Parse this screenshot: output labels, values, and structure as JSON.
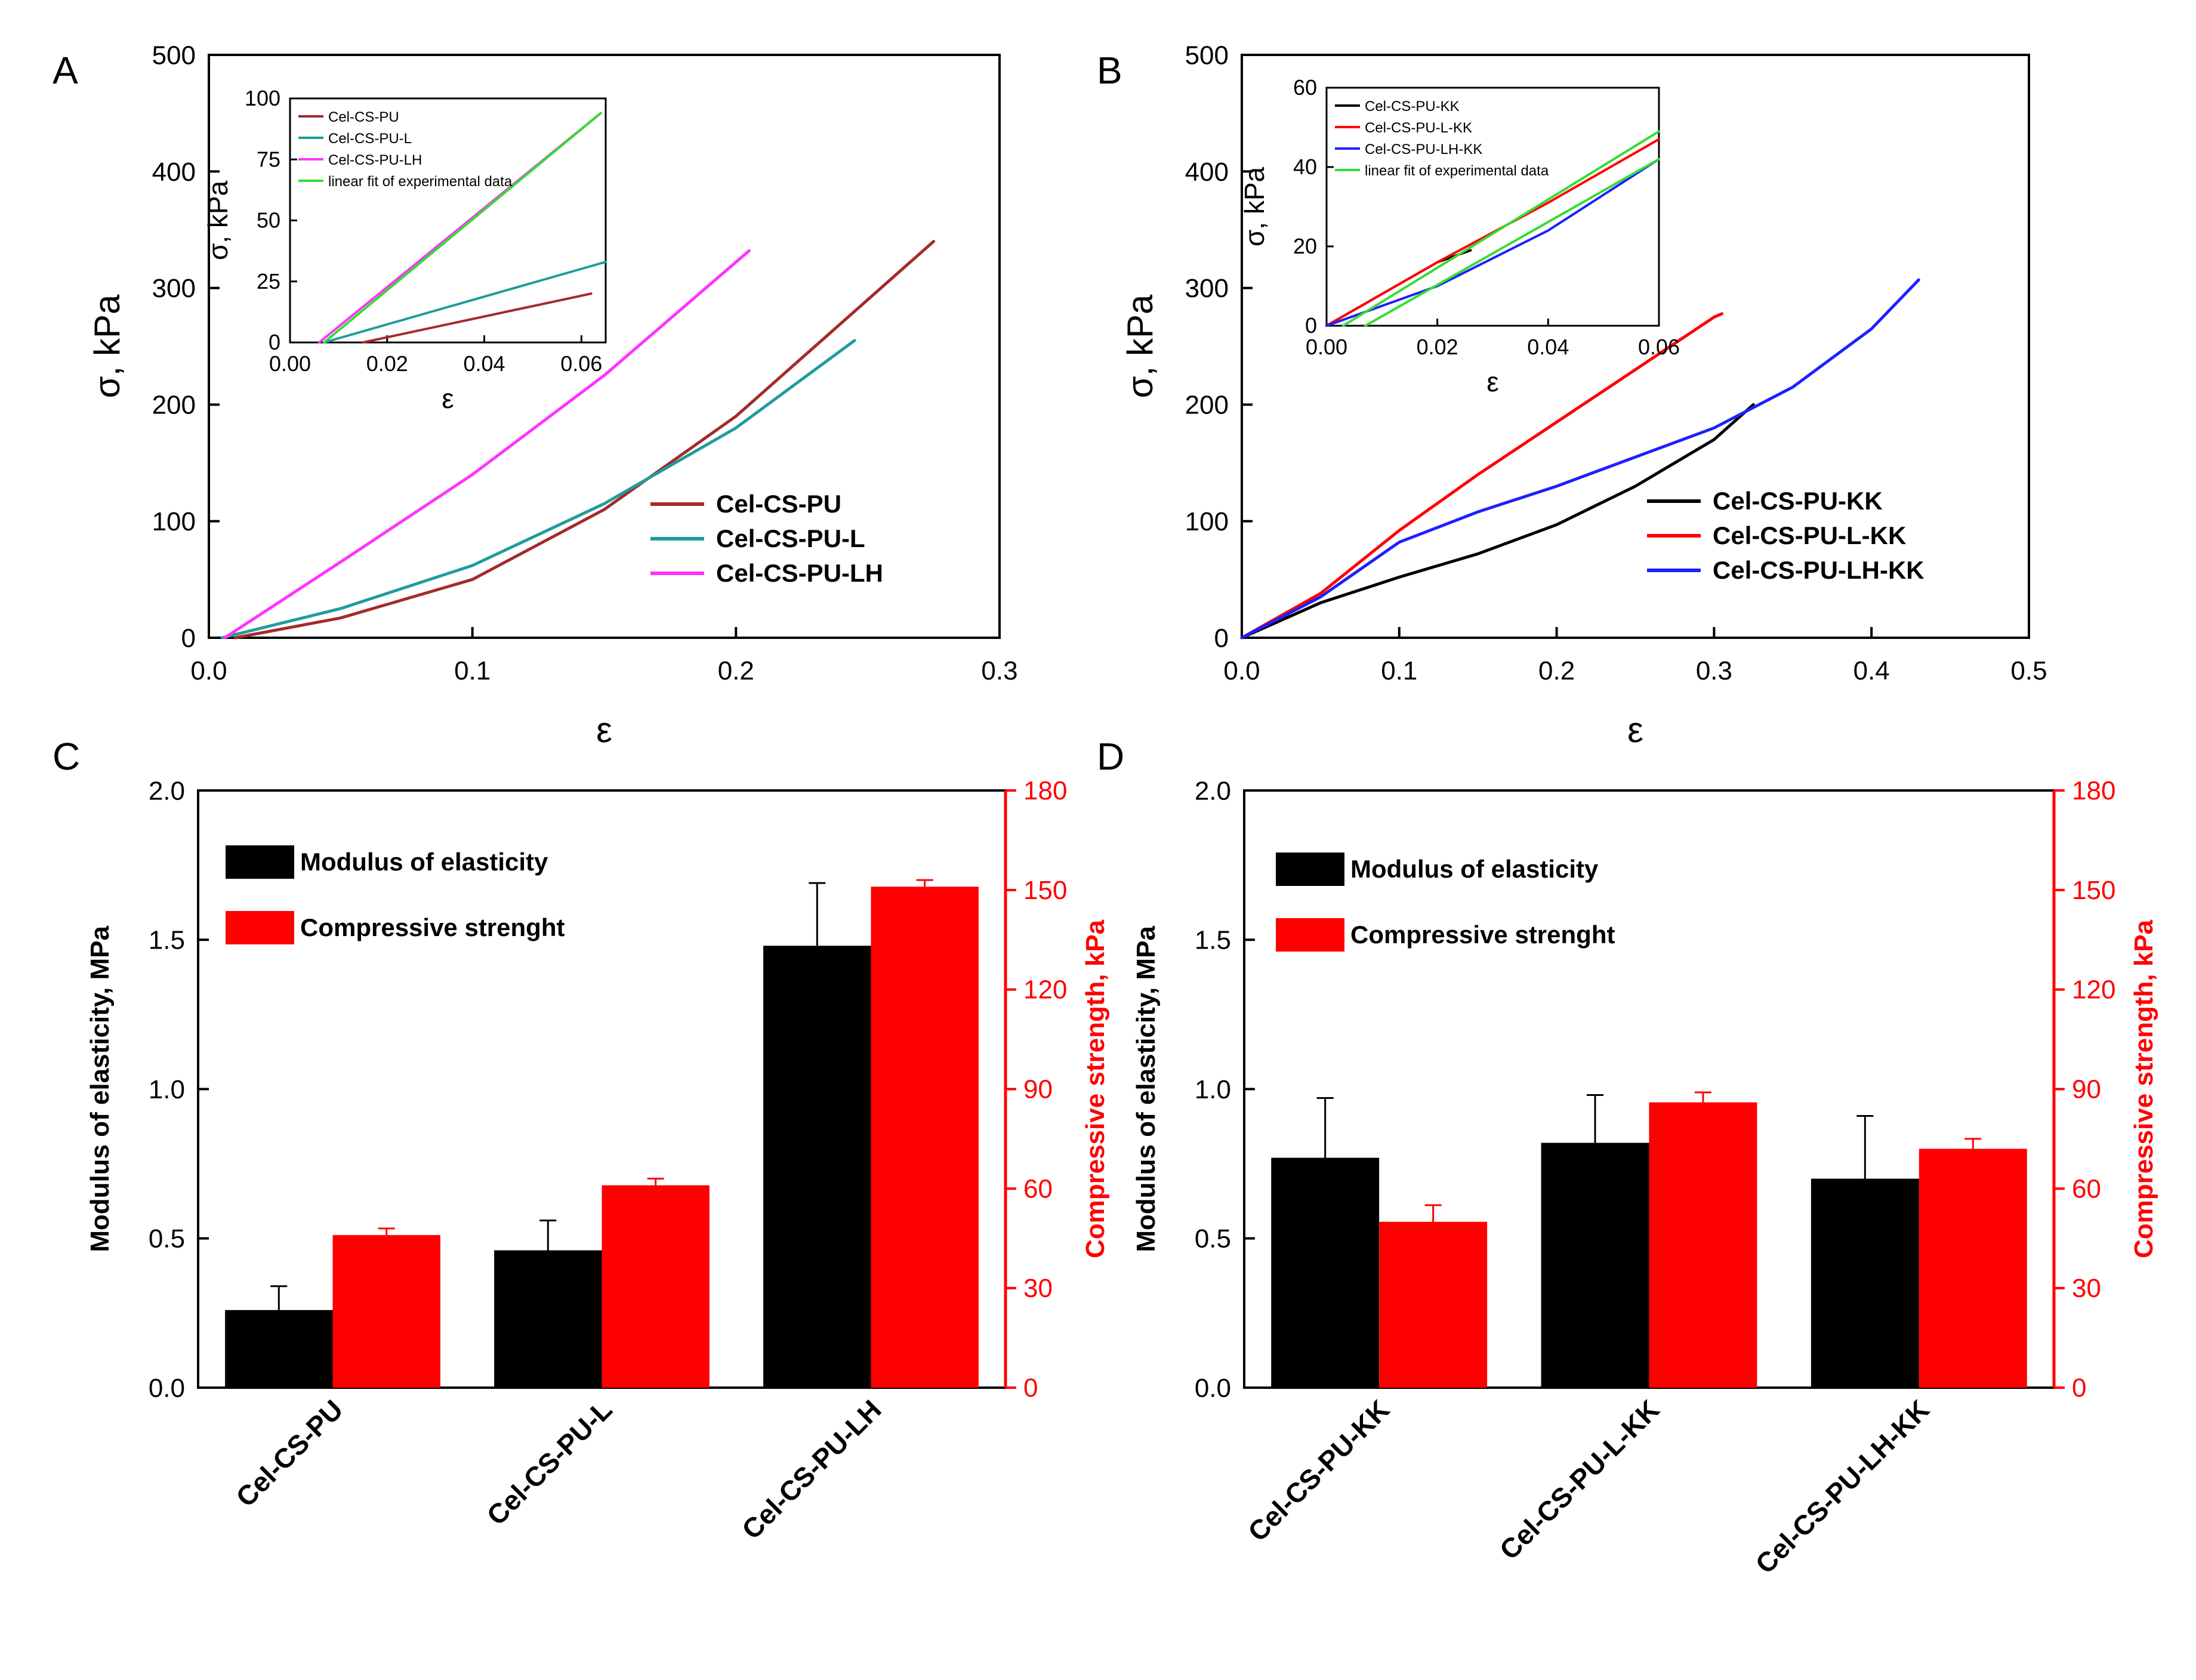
{
  "colors": {
    "black": "#000000",
    "red": "#ff0000",
    "dark_red": "#a52a2a",
    "teal": "#209c9c",
    "magenta": "#ff33ff",
    "blue": "#1f1fff",
    "green": "#33dd33"
  },
  "chart_data": [
    {
      "id": "A",
      "panel_label": "A",
      "type": "line",
      "xlabel": "ε",
      "ylabel": "σ, kPa",
      "xlim": [
        0,
        0.3
      ],
      "ylim": [
        0,
        500
      ],
      "xticks": [
        "0.0",
        "0.1",
        "0.2",
        "0.3"
      ],
      "yticks": [
        "0",
        "100",
        "200",
        "300",
        "400",
        "500"
      ],
      "legend_position": "center-right",
      "series": [
        {
          "name": "Cel-CS-PU",
          "color": "#a52a2a",
          "points": [
            [
              0.01,
              0
            ],
            [
              0.05,
              17
            ],
            [
              0.1,
              50
            ],
            [
              0.15,
              110
            ],
            [
              0.2,
              190
            ],
            [
              0.25,
              290
            ],
            [
              0.275,
              340
            ]
          ]
        },
        {
          "name": "Cel-CS-PU-L",
          "color": "#209c9c",
          "points": [
            [
              0.005,
              0
            ],
            [
              0.05,
              25
            ],
            [
              0.1,
              62
            ],
            [
              0.15,
              115
            ],
            [
              0.2,
              180
            ],
            [
              0.245,
              255
            ]
          ]
        },
        {
          "name": "Cel-CS-PU-LH",
          "color": "#ff33ff",
          "points": [
            [
              0.006,
              0
            ],
            [
              0.05,
              65
            ],
            [
              0.1,
              140
            ],
            [
              0.15,
              225
            ],
            [
              0.205,
              332
            ]
          ]
        }
      ],
      "inset": {
        "xlabel": "ε",
        "ylabel": "σ, kPa",
        "xlim": [
          0,
          0.065
        ],
        "ylim": [
          0,
          100
        ],
        "xticks": [
          "0.00",
          "0.02",
          "0.04",
          "0.06"
        ],
        "yticks": [
          "0",
          "25",
          "50",
          "75",
          "100"
        ],
        "series": [
          {
            "name": "Cel-CS-PU",
            "color": "#a52a2a",
            "points": [
              [
                0.015,
                0
              ],
              [
                0.062,
                20
              ]
            ]
          },
          {
            "name": "Cel-CS-PU-L",
            "color": "#209c9c",
            "points": [
              [
                0.007,
                0
              ],
              [
                0.065,
                33
              ]
            ]
          },
          {
            "name": "Cel-CS-PU-LH",
            "color": "#ff33ff",
            "points": [
              [
                0.006,
                0
              ],
              [
                0.064,
                94
              ]
            ]
          },
          {
            "name": "linear fit of experimental data",
            "color": "#33dd33",
            "points": [
              [
                0.007,
                0
              ],
              [
                0.064,
                94
              ]
            ]
          }
        ]
      }
    },
    {
      "id": "B",
      "panel_label": "B",
      "type": "line",
      "xlabel": "ε",
      "ylabel": "σ, kPa",
      "xlim": [
        0,
        0.5
      ],
      "ylim": [
        0,
        500
      ],
      "xticks": [
        "0.0",
        "0.1",
        "0.2",
        "0.3",
        "0.4",
        "0.5"
      ],
      "yticks": [
        "0",
        "100",
        "200",
        "300",
        "400",
        "500"
      ],
      "legend_position": "center-right",
      "series": [
        {
          "name": "Cel-CS-PU-KK",
          "color": "#000000",
          "points": [
            [
              0,
              0
            ],
            [
              0.05,
              30
            ],
            [
              0.1,
              52
            ],
            [
              0.15,
              72
            ],
            [
              0.2,
              97
            ],
            [
              0.25,
              130
            ],
            [
              0.3,
              170
            ],
            [
              0.325,
              200
            ]
          ]
        },
        {
          "name": "Cel-CS-PU-L-KK",
          "color": "#ff0000",
          "points": [
            [
              0,
              0
            ],
            [
              0.05,
              38
            ],
            [
              0.1,
              92
            ],
            [
              0.15,
              140
            ],
            [
              0.2,
              185
            ],
            [
              0.25,
              230
            ],
            [
              0.3,
              275
            ],
            [
              0.305,
              278
            ]
          ]
        },
        {
          "name": "Cel-CS-PU-LH-KK",
          "color": "#1f1fff",
          "points": [
            [
              0,
              0
            ],
            [
              0.05,
              35
            ],
            [
              0.1,
              82
            ],
            [
              0.15,
              108
            ],
            [
              0.2,
              130
            ],
            [
              0.25,
              155
            ],
            [
              0.3,
              180
            ],
            [
              0.35,
              215
            ],
            [
              0.4,
              265
            ],
            [
              0.43,
              307
            ]
          ]
        }
      ],
      "inset": {
        "xlabel": "ε",
        "ylabel": "σ, kPa",
        "xlim": [
          0,
          0.06
        ],
        "ylim": [
          0,
          60
        ],
        "xticks": [
          "0.00",
          "0.02",
          "0.04",
          "0.06"
        ],
        "yticks": [
          "0",
          "20",
          "40",
          "60"
        ],
        "series": [
          {
            "name": "Cel-CS-PU-KK",
            "color": "#000000",
            "points": [
              [
                0,
                0
              ],
              [
                0.01,
                8
              ],
              [
                0.02,
                16
              ],
              [
                0.026,
                19
              ]
            ]
          },
          {
            "name": "Cel-CS-PU-L-KK",
            "color": "#ff0000",
            "points": [
              [
                0,
                0
              ],
              [
                0.02,
                16
              ],
              [
                0.04,
                31
              ],
              [
                0.06,
                47
              ]
            ]
          },
          {
            "name": "Cel-CS-PU-LH-KK",
            "color": "#1f1fff",
            "points": [
              [
                0,
                0
              ],
              [
                0.02,
                10
              ],
              [
                0.04,
                24
              ],
              [
                0.06,
                42
              ]
            ]
          },
          {
            "name": "linear fit of experimental data",
            "color": "#33dd33",
            "points": [
              [
                0.003,
                0
              ],
              [
                0.06,
                49
              ]
            ]
          },
          {
            "name": "linear fit of experimental data",
            "color": "#33dd33",
            "points": [
              [
                0.007,
                0
              ],
              [
                0.06,
                42
              ]
            ]
          }
        ]
      }
    },
    {
      "id": "C",
      "panel_label": "C",
      "type": "bar",
      "categories": [
        "Cel-CS-PU",
        "Cel-CS-PU-L",
        "Cel-CS-PU-LH"
      ],
      "ylabel": "Modulus of elasticity, MPa",
      "y2label": "Compressive strength, kPa",
      "ylim": [
        0,
        2.0
      ],
      "y2lim": [
        0,
        180
      ],
      "yticks": [
        "0.0",
        "0.5",
        "1.0",
        "1.5",
        "2.0"
      ],
      "y2ticks": [
        "0",
        "30",
        "60",
        "90",
        "120",
        "150",
        "180"
      ],
      "legend_position": "top-left",
      "series": [
        {
          "name": "Modulus of elasticity",
          "color": "#000000",
          "axis": "left",
          "values": [
            0.26,
            0.46,
            1.48
          ],
          "errors": [
            0.08,
            0.1,
            0.21
          ]
        },
        {
          "name": "Compressive strenght",
          "color": "#ff0000",
          "axis": "right",
          "values": [
            46,
            61,
            151
          ],
          "errors": [
            2,
            2,
            2
          ]
        }
      ]
    },
    {
      "id": "D",
      "panel_label": "D",
      "type": "bar",
      "categories": [
        "Cel-CS-PU-KK",
        "Cel-CS-PU-L-KK",
        "Cel-CS-PU-LH-KK"
      ],
      "ylabel": "Modulus of elasticity, MPa",
      "y2label": "Compressive strength, kPa",
      "ylim": [
        0,
        2.0
      ],
      "y2lim": [
        0,
        180
      ],
      "yticks": [
        "0.0",
        "0.5",
        "1.0",
        "1.5",
        "2.0"
      ],
      "y2ticks": [
        "0",
        "30",
        "60",
        "90",
        "120",
        "150",
        "180"
      ],
      "legend_position": "top-left",
      "series": [
        {
          "name": "Modulus of elasticity",
          "color": "#000000",
          "axis": "left",
          "values": [
            0.77,
            0.82,
            0.7
          ],
          "errors": [
            0.2,
            0.16,
            0.21
          ]
        },
        {
          "name": "Compressive strenght",
          "color": "#ff0000",
          "axis": "right",
          "values": [
            50,
            86,
            72
          ],
          "errors": [
            5,
            3,
            3
          ]
        }
      ]
    }
  ]
}
